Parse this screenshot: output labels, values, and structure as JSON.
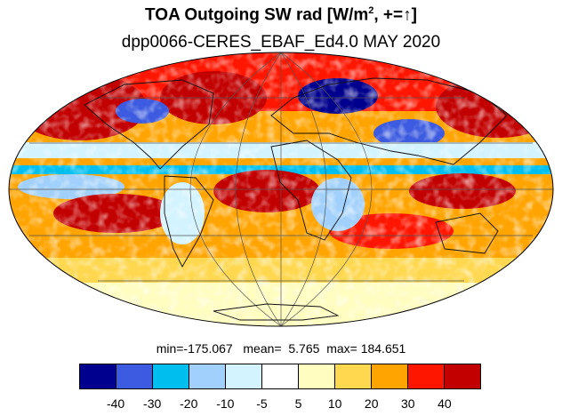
{
  "title_main": "TOA Outgoing SW rad [W/m",
  "title_sup": "2",
  "title_end": ", +=",
  "title_arrow": "↑",
  "title_close": "]",
  "subtitle": "dpp0066-CERES_EBAF_Ed4.0 MAY 2020",
  "stats": {
    "min_label": "min=",
    "min": "-175.067",
    "mean_label": "mean=",
    "mean": "5.765",
    "max_label": "max=",
    "max": "184.651"
  },
  "colorbar": {
    "colors": [
      "#00008e",
      "#3c5be0",
      "#00bfee",
      "#a0d0fb",
      "#d2f3ff",
      "#ffffff",
      "#fffdc0",
      "#ffd84f",
      "#ffa400",
      "#ff1600",
      "#c30000"
    ],
    "ticks": [
      "-40",
      "-30",
      "-20",
      "-10",
      "-5",
      "5",
      "10",
      "20",
      "30",
      "40"
    ]
  },
  "map": {
    "projection": "mollweide",
    "palette": {
      "ocean_red": "#c30000",
      "bright_red": "#ff1600",
      "orange": "#ffa400",
      "yellow": "#ffd84f",
      "pale_yellow": "#fffdc0",
      "white": "#ffffff",
      "pale_blue": "#d2f3ff",
      "light_blue": "#a0d0fb",
      "cyan": "#00bfee",
      "blue": "#3c5be0",
      "navy": "#00008e"
    }
  }
}
